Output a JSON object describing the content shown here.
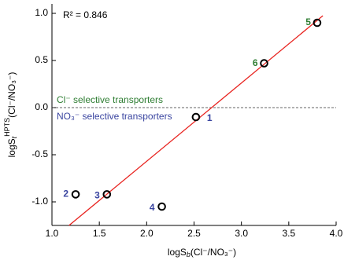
{
  "chart_data": {
    "type": "scatter",
    "x_label": [
      "logS",
      "b",
      "(Cl⁻/NO₃⁻)"
    ],
    "y_label": [
      "logS",
      "t",
      "HPTS",
      "(Cl⁻/NO₃⁻)"
    ],
    "annotations": [
      {
        "text": "R² = 0.846",
        "color": "#000000"
      },
      {
        "text": "Cl⁻ selective transporters",
        "color": "#2e7d32"
      },
      {
        "text": "NO₃⁻ selective transporters",
        "color": "#3a45a0"
      }
    ],
    "series": [
      {
        "name": "transporters",
        "color": "#000000",
        "x": [
          2.52,
          1.25,
          1.58,
          2.16,
          3.8,
          3.24
        ],
        "values": [
          -0.1,
          -0.92,
          -0.92,
          -1.05,
          0.9,
          0.47
        ],
        "point_labels": [
          "1",
          "2",
          "3",
          "4",
          "5",
          "6"
        ],
        "label_colors": [
          "#3a45a0",
          "#3a45a0",
          "#3a45a0",
          "#3a45a0",
          "#2e7d32",
          "#2e7d32"
        ]
      }
    ],
    "fit_line": {
      "color": "#e8231f",
      "x": [
        1.18,
        3.86
      ],
      "values": [
        -1.25,
        0.975
      ]
    },
    "hline": 0,
    "xlim": [
      1,
      4
    ],
    "ylim": [
      -1.25,
      1.1
    ],
    "xticks": [
      {
        "value": 1,
        "label": "1.0"
      },
      {
        "value": 1.5,
        "label": "1.5"
      },
      {
        "value": 2,
        "label": "2.0"
      },
      {
        "value": 2.5,
        "label": "2.5"
      },
      {
        "value": 3,
        "label": "3.0"
      },
      {
        "value": 3.5,
        "label": "3.5"
      },
      {
        "value": 4,
        "label": "4.0"
      }
    ],
    "yticks": [
      {
        "value": -1,
        "label": "-1.0"
      },
      {
        "value": -0.5,
        "label": "-0.5"
      },
      {
        "value": 0,
        "label": "0.0"
      },
      {
        "value": 0.5,
        "label": "0.5"
      },
      {
        "value": 1,
        "label": "1.0"
      }
    ]
  }
}
